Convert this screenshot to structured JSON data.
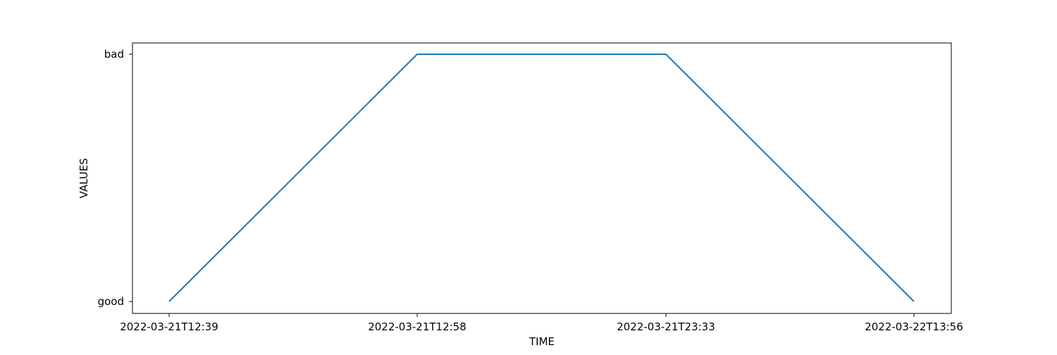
{
  "chart_data": {
    "type": "line",
    "title": "",
    "xlabel": "TIME",
    "ylabel": "VALUES",
    "categories": [
      "2022-03-21T12:39",
      "2022-03-21T12:58",
      "2022-03-21T23:33",
      "2022-03-22T13:56"
    ],
    "y_categories": [
      "good",
      "bad"
    ],
    "series": [
      {
        "values": [
          "good",
          "bad",
          "bad",
          "good"
        ],
        "color": "#1f77b4"
      }
    ],
    "grid": false,
    "legend": "none"
  }
}
